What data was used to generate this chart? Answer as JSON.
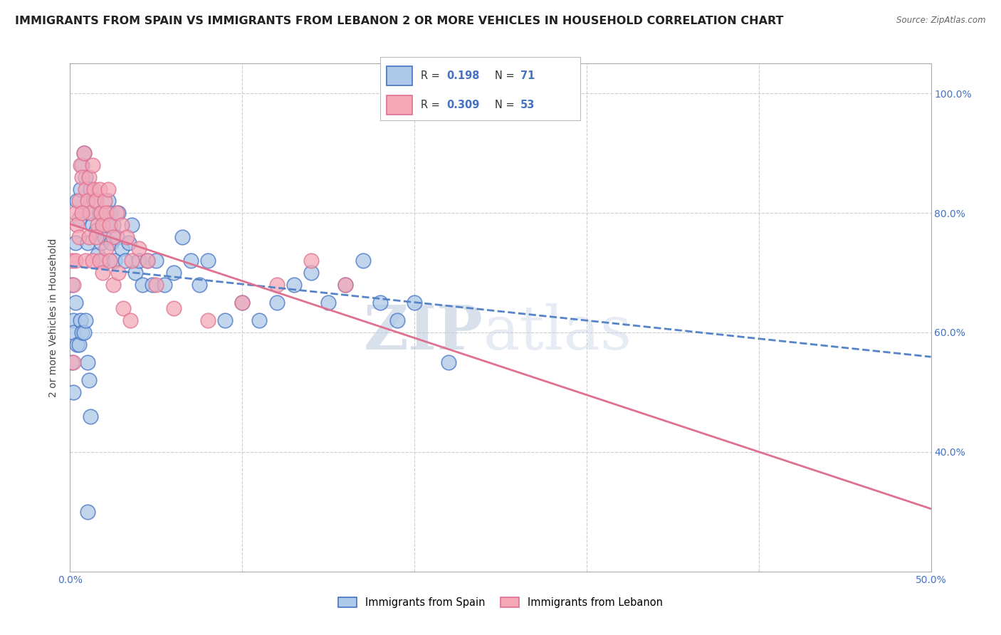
{
  "title": "IMMIGRANTS FROM SPAIN VS IMMIGRANTS FROM LEBANON 2 OR MORE VEHICLES IN HOUSEHOLD CORRELATION CHART",
  "source": "Source: ZipAtlas.com",
  "ylabel": "2 or more Vehicles in Household",
  "xlim": [
    0.0,
    0.5
  ],
  "ylim": [
    0.2,
    1.05
  ],
  "ytick_positions": [
    0.4,
    0.6,
    0.8,
    1.0
  ],
  "ytick_labels": [
    "40.0%",
    "60.0%",
    "80.0%",
    "100.0%"
  ],
  "xtick_positions": [
    0.0,
    0.1,
    0.2,
    0.3,
    0.4,
    0.5
  ],
  "xtick_labels": [
    "0.0%",
    "",
    "",
    "",
    "",
    "50.0%"
  ],
  "spain_R": 0.198,
  "spain_N": 71,
  "lebanon_R": 0.309,
  "lebanon_N": 53,
  "spain_face_color": "#adc8e8",
  "spain_edge_color": "#4472c4",
  "lebanon_face_color": "#f4a8b8",
  "lebanon_edge_color": "#e07090",
  "spain_line_color": "#5585c8",
  "lebanon_line_color": "#e07090",
  "watermark_zip": "ZIP",
  "watermark_atlas": "atlas",
  "background_color": "#ffffff",
  "grid_color": "#cccccc",
  "title_color": "#222222",
  "tick_color": "#4472c4",
  "ylabel_color": "#444444",
  "title_fontsize": 11.5,
  "tick_fontsize": 10,
  "ylabel_fontsize": 10,
  "spain_scatter_x": [
    0.001,
    0.002,
    0.003,
    0.004,
    0.005,
    0.006,
    0.007,
    0.008,
    0.009,
    0.01,
    0.011,
    0.012,
    0.013,
    0.014,
    0.015,
    0.016,
    0.017,
    0.018,
    0.019,
    0.02,
    0.021,
    0.022,
    0.023,
    0.024,
    0.025,
    0.026,
    0.027,
    0.028,
    0.03,
    0.032,
    0.034,
    0.036,
    0.038,
    0.04,
    0.042,
    0.045,
    0.048,
    0.05,
    0.055,
    0.06,
    0.065,
    0.07,
    0.075,
    0.08,
    0.09,
    0.1,
    0.11,
    0.12,
    0.13,
    0.14,
    0.15,
    0.16,
    0.17,
    0.18,
    0.19,
    0.2,
    0.22,
    0.001,
    0.002,
    0.003,
    0.004,
    0.005,
    0.006,
    0.007,
    0.008,
    0.009,
    0.01,
    0.011,
    0.012,
    0.002,
    0.01
  ],
  "spain_scatter_y": [
    0.68,
    0.62,
    0.75,
    0.82,
    0.79,
    0.84,
    0.88,
    0.9,
    0.86,
    0.75,
    0.8,
    0.84,
    0.78,
    0.82,
    0.77,
    0.73,
    0.8,
    0.75,
    0.72,
    0.76,
    0.78,
    0.82,
    0.8,
    0.75,
    0.78,
    0.72,
    0.76,
    0.8,
    0.74,
    0.72,
    0.75,
    0.78,
    0.7,
    0.72,
    0.68,
    0.72,
    0.68,
    0.72,
    0.68,
    0.7,
    0.76,
    0.72,
    0.68,
    0.72,
    0.62,
    0.65,
    0.62,
    0.65,
    0.68,
    0.7,
    0.65,
    0.68,
    0.72,
    0.65,
    0.62,
    0.65,
    0.55,
    0.55,
    0.6,
    0.65,
    0.58,
    0.58,
    0.62,
    0.6,
    0.6,
    0.62,
    0.55,
    0.52,
    0.46,
    0.5,
    0.3
  ],
  "lebanon_scatter_x": [
    0.001,
    0.002,
    0.003,
    0.004,
    0.005,
    0.006,
    0.007,
    0.008,
    0.009,
    0.01,
    0.011,
    0.012,
    0.013,
    0.014,
    0.015,
    0.016,
    0.017,
    0.018,
    0.019,
    0.02,
    0.021,
    0.022,
    0.023,
    0.025,
    0.027,
    0.03,
    0.033,
    0.036,
    0.04,
    0.045,
    0.05,
    0.06,
    0.08,
    0.1,
    0.12,
    0.14,
    0.16,
    0.003,
    0.005,
    0.007,
    0.009,
    0.011,
    0.013,
    0.015,
    0.017,
    0.019,
    0.021,
    0.023,
    0.025,
    0.028,
    0.031,
    0.035,
    0.002
  ],
  "lebanon_scatter_y": [
    0.72,
    0.68,
    0.8,
    0.78,
    0.82,
    0.88,
    0.86,
    0.9,
    0.84,
    0.82,
    0.86,
    0.8,
    0.88,
    0.84,
    0.82,
    0.78,
    0.84,
    0.8,
    0.78,
    0.82,
    0.8,
    0.84,
    0.78,
    0.76,
    0.8,
    0.78,
    0.76,
    0.72,
    0.74,
    0.72,
    0.68,
    0.64,
    0.62,
    0.65,
    0.68,
    0.72,
    0.68,
    0.72,
    0.76,
    0.8,
    0.72,
    0.76,
    0.72,
    0.76,
    0.72,
    0.7,
    0.74,
    0.72,
    0.68,
    0.7,
    0.64,
    0.62,
    0.55
  ]
}
